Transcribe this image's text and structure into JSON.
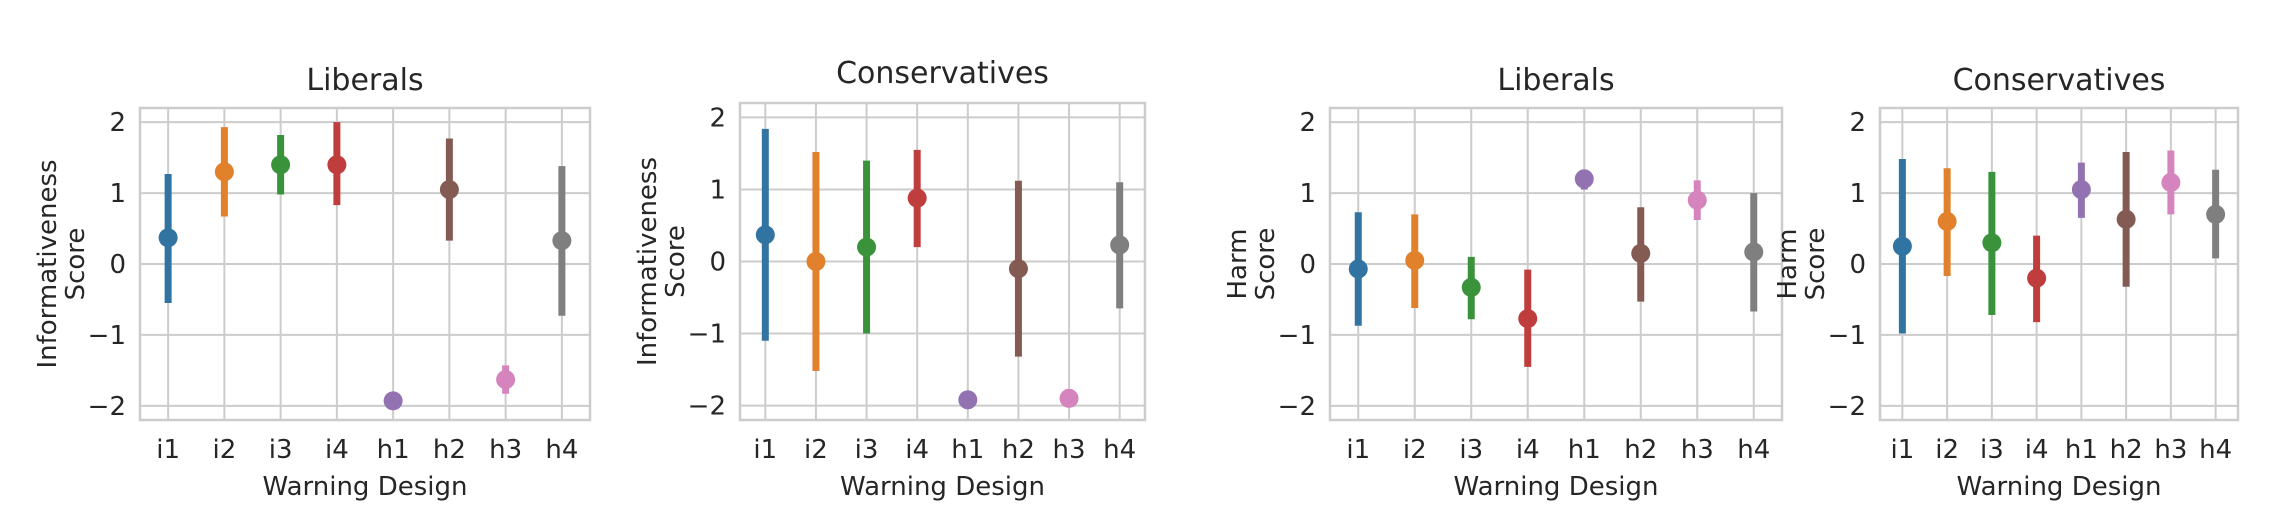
{
  "chart_data": [
    {
      "type": "pointplot-errorbar",
      "title": "Liberals",
      "xlabel": "Warning Design",
      "ylabel": [
        "Informativeness",
        "Score"
      ],
      "categories": [
        "i1",
        "i2",
        "i3",
        "i4",
        "h1",
        "h2",
        "h3",
        "h4"
      ],
      "ylim": [
        -2.2,
        2.2
      ],
      "yticks": [
        -2,
        -1,
        0,
        1,
        2
      ],
      "ytick_labels": [
        "−2",
        "−1",
        "0",
        "1",
        "2"
      ],
      "grid": true,
      "points": [
        {
          "x": "i1",
          "y": 0.37,
          "low": -0.55,
          "high": 1.27
        },
        {
          "x": "i2",
          "y": 1.3,
          "low": 0.67,
          "high": 1.93
        },
        {
          "x": "i3",
          "y": 1.4,
          "low": 0.98,
          "high": 1.82
        },
        {
          "x": "i4",
          "y": 1.4,
          "low": 0.83,
          "high": 2.0
        },
        {
          "x": "h1",
          "y": -1.93,
          "low": -1.98,
          "high": -1.88
        },
        {
          "x": "h2",
          "y": 1.05,
          "low": 0.33,
          "high": 1.77
        },
        {
          "x": "h3",
          "y": -1.63,
          "low": -1.83,
          "high": -1.43
        },
        {
          "x": "h4",
          "y": 0.33,
          "low": -0.73,
          "high": 1.38
        }
      ]
    },
    {
      "type": "pointplot-errorbar",
      "title": "Conservatives",
      "xlabel": "Warning Design",
      "ylabel": [
        "Informativeness",
        "Score"
      ],
      "categories": [
        "i1",
        "i2",
        "i3",
        "i4",
        "h1",
        "h2",
        "h3",
        "h4"
      ],
      "ylim": [
        -2.2,
        2.2
      ],
      "yticks": [
        -2,
        -1,
        0,
        1,
        2
      ],
      "ytick_labels": [
        "−2",
        "−1",
        "0",
        "1",
        "2"
      ],
      "grid": true,
      "points": [
        {
          "x": "i1",
          "y": 0.37,
          "low": -1.1,
          "high": 1.84
        },
        {
          "x": "i2",
          "y": 0.0,
          "low": -1.52,
          "high": 1.52
        },
        {
          "x": "i3",
          "y": 0.2,
          "low": -1.0,
          "high": 1.4
        },
        {
          "x": "i4",
          "y": 0.88,
          "low": 0.2,
          "high": 1.55
        },
        {
          "x": "h1",
          "y": -1.92,
          "low": -1.97,
          "high": -1.87
        },
        {
          "x": "h2",
          "y": -0.1,
          "low": -1.32,
          "high": 1.12
        },
        {
          "x": "h3",
          "y": -1.9,
          "low": -2.02,
          "high": -1.77
        },
        {
          "x": "h4",
          "y": 0.23,
          "low": -0.65,
          "high": 1.1
        }
      ]
    },
    {
      "type": "pointplot-errorbar",
      "title": "Liberals",
      "xlabel": "Warning Design",
      "ylabel": [
        "Harm",
        "Score"
      ],
      "categories": [
        "i1",
        "i2",
        "i3",
        "i4",
        "h1",
        "h2",
        "h3",
        "h4"
      ],
      "ylim": [
        -2.2,
        2.2
      ],
      "yticks": [
        -2,
        -1,
        0,
        1,
        2
      ],
      "ytick_labels": [
        "−2",
        "−1",
        "0",
        "1",
        "2"
      ],
      "grid": true,
      "points": [
        {
          "x": "i1",
          "y": -0.07,
          "low": -0.87,
          "high": 0.73
        },
        {
          "x": "i2",
          "y": 0.05,
          "low": -0.62,
          "high": 0.7
        },
        {
          "x": "i3",
          "y": -0.33,
          "low": -0.78,
          "high": 0.1
        },
        {
          "x": "i4",
          "y": -0.77,
          "low": -1.45,
          "high": -0.08
        },
        {
          "x": "h1",
          "y": 1.2,
          "low": 1.05,
          "high": 1.33
        },
        {
          "x": "h2",
          "y": 0.15,
          "low": -0.53,
          "high": 0.8
        },
        {
          "x": "h3",
          "y": 0.9,
          "low": 0.62,
          "high": 1.18
        },
        {
          "x": "h4",
          "y": 0.17,
          "low": -0.67,
          "high": 1.0
        }
      ]
    },
    {
      "type": "pointplot-errorbar",
      "title": "Conservatives",
      "xlabel": "Warning Design",
      "ylabel": [
        "Harm",
        "Score"
      ],
      "categories": [
        "i1",
        "i2",
        "i3",
        "i4",
        "h1",
        "h2",
        "h3",
        "h4"
      ],
      "ylim": [
        -2.2,
        2.2
      ],
      "yticks": [
        -2,
        -1,
        0,
        1,
        2
      ],
      "ytick_labels": [
        "−2",
        "−1",
        "0",
        "1",
        "2"
      ],
      "grid": true,
      "points": [
        {
          "x": "i1",
          "y": 0.25,
          "low": -0.98,
          "high": 1.48
        },
        {
          "x": "i2",
          "y": 0.6,
          "low": -0.17,
          "high": 1.35
        },
        {
          "x": "i3",
          "y": 0.3,
          "low": -0.72,
          "high": 1.3
        },
        {
          "x": "i4",
          "y": -0.2,
          "low": -0.82,
          "high": 0.4
        },
        {
          "x": "h1",
          "y": 1.05,
          "low": 0.65,
          "high": 1.43
        },
        {
          "x": "h2",
          "y": 0.63,
          "low": -0.32,
          "high": 1.58
        },
        {
          "x": "h3",
          "y": 1.15,
          "low": 0.7,
          "high": 1.6
        },
        {
          "x": "h4",
          "y": 0.7,
          "low": 0.08,
          "high": 1.33
        }
      ]
    }
  ],
  "colors": [
    "#3274a1",
    "#e1812c",
    "#3a923a",
    "#c03d3e",
    "#9372b2",
    "#845b53",
    "#d684bd",
    "#7f7f7f"
  ]
}
